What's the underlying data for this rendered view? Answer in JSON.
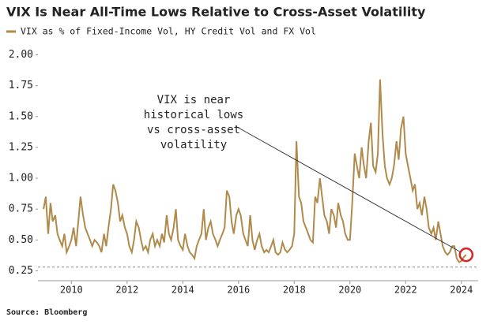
{
  "chart_data": {
    "type": "line",
    "title": "VIX Is Near All-Time Lows Relative to Cross-Asset Volatility",
    "source": "Source: Bloomberg",
    "annotation": [
      "VIX is near",
      "historical lows",
      "vs cross-asset",
      "volatility"
    ],
    "reference_line": 0.28,
    "xlim": [
      2008.8,
      2024.6
    ],
    "xticks": [
      2010,
      2012,
      2014,
      2016,
      2018,
      2020,
      2022,
      2024
    ],
    "ylim": [
      0.17,
      2.08
    ],
    "yticks": [
      {
        "value": 0.25,
        "label": "0.25"
      },
      {
        "value": 0.5,
        "label": "0.50"
      },
      {
        "value": 0.75,
        "label": "0.75"
      },
      {
        "value": 1,
        "label": "1.00"
      },
      {
        "value": 1.25,
        "label": "1.25"
      },
      {
        "value": 1.5,
        "label": "1.50"
      },
      {
        "value": 1.75,
        "label": "1.75"
      },
      {
        "value": 2,
        "label": "2.00"
      }
    ],
    "x": [
      2009,
      2009.08,
      2009.17,
      2009.25,
      2009.33,
      2009.42,
      2009.5,
      2009.58,
      2009.67,
      2009.75,
      2009.83,
      2009.92,
      2010,
      2010.08,
      2010.17,
      2010.25,
      2010.33,
      2010.42,
      2010.5,
      2010.58,
      2010.67,
      2010.75,
      2010.83,
      2010.92,
      2011,
      2011.08,
      2011.17,
      2011.25,
      2011.33,
      2011.42,
      2011.5,
      2011.58,
      2011.67,
      2011.75,
      2011.83,
      2011.92,
      2012,
      2012.08,
      2012.17,
      2012.25,
      2012.33,
      2012.42,
      2012.5,
      2012.58,
      2012.67,
      2012.75,
      2012.83,
      2012.92,
      2013,
      2013.08,
      2013.17,
      2013.25,
      2013.33,
      2013.42,
      2013.5,
      2013.58,
      2013.67,
      2013.75,
      2013.83,
      2013.92,
      2014,
      2014.08,
      2014.17,
      2014.25,
      2014.33,
      2014.42,
      2014.5,
      2014.58,
      2014.67,
      2014.75,
      2014.83,
      2014.92,
      2015,
      2015.08,
      2015.17,
      2015.25,
      2015.33,
      2015.42,
      2015.5,
      2015.58,
      2015.67,
      2015.75,
      2015.83,
      2015.92,
      2016,
      2016.08,
      2016.17,
      2016.25,
      2016.33,
      2016.42,
      2016.5,
      2016.58,
      2016.67,
      2016.75,
      2016.83,
      2016.92,
      2017,
      2017.08,
      2017.17,
      2017.25,
      2017.33,
      2017.42,
      2017.5,
      2017.58,
      2017.67,
      2017.75,
      2017.83,
      2017.92,
      2018,
      2018.08,
      2018.17,
      2018.25,
      2018.33,
      2018.42,
      2018.5,
      2018.58,
      2018.67,
      2018.75,
      2018.83,
      2018.92,
      2019,
      2019.08,
      2019.17,
      2019.25,
      2019.33,
      2019.42,
      2019.5,
      2019.58,
      2019.67,
      2019.75,
      2019.83,
      2019.92,
      2020,
      2020.08,
      2020.17,
      2020.25,
      2020.33,
      2020.42,
      2020.5,
      2020.58,
      2020.67,
      2020.75,
      2020.83,
      2020.92,
      2021,
      2021.08,
      2021.17,
      2021.25,
      2021.33,
      2021.42,
      2021.5,
      2021.58,
      2021.67,
      2021.75,
      2021.83,
      2021.92,
      2022,
      2022.08,
      2022.17,
      2022.25,
      2022.33,
      2022.42,
      2022.5,
      2022.58,
      2022.67,
      2022.75,
      2022.83,
      2022.92,
      2023,
      2023.08,
      2023.17,
      2023.25,
      2023.33,
      2023.42,
      2023.5,
      2023.58,
      2023.67,
      2023.75,
      2023.83,
      2023.92,
      2024,
      2024.08,
      2024.17
    ],
    "series": [
      {
        "name": "VIX as % of Fixed-Income Vol, HY Credit Vol and FX Vol",
        "color": "#b08a4a",
        "values": [
          0.75,
          0.85,
          0.55,
          0.8,
          0.65,
          0.7,
          0.55,
          0.5,
          0.45,
          0.55,
          0.4,
          0.45,
          0.5,
          0.6,
          0.45,
          0.65,
          0.85,
          0.7,
          0.6,
          0.55,
          0.5,
          0.45,
          0.5,
          0.48,
          0.45,
          0.4,
          0.55,
          0.45,
          0.6,
          0.75,
          0.95,
          0.9,
          0.8,
          0.65,
          0.7,
          0.6,
          0.55,
          0.45,
          0.4,
          0.5,
          0.65,
          0.6,
          0.5,
          0.42,
          0.45,
          0.4,
          0.5,
          0.55,
          0.45,
          0.5,
          0.45,
          0.55,
          0.48,
          0.7,
          0.55,
          0.5,
          0.6,
          0.75,
          0.5,
          0.45,
          0.42,
          0.55,
          0.45,
          0.4,
          0.38,
          0.35,
          0.45,
          0.5,
          0.55,
          0.75,
          0.5,
          0.6,
          0.65,
          0.55,
          0.5,
          0.45,
          0.5,
          0.55,
          0.6,
          0.9,
          0.85,
          0.65,
          0.55,
          0.7,
          0.75,
          0.7,
          0.55,
          0.5,
          0.45,
          0.7,
          0.5,
          0.42,
          0.5,
          0.55,
          0.45,
          0.4,
          0.42,
          0.4,
          0.45,
          0.5,
          0.4,
          0.38,
          0.4,
          0.48,
          0.42,
          0.4,
          0.42,
          0.45,
          0.55,
          1.3,
          0.85,
          0.8,
          0.65,
          0.6,
          0.55,
          0.5,
          0.48,
          0.85,
          0.8,
          1.0,
          0.85,
          0.7,
          0.65,
          0.55,
          0.75,
          0.7,
          0.6,
          0.8,
          0.7,
          0.65,
          0.55,
          0.5,
          0.5,
          0.8,
          1.2,
          1.1,
          1.0,
          1.25,
          1.1,
          1.0,
          1.3,
          1.45,
          1.1,
          1.05,
          1.2,
          1.8,
          1.35,
          1.1,
          1.0,
          0.95,
          1.0,
          1.1,
          1.3,
          1.15,
          1.4,
          1.5,
          1.2,
          1.1,
          1.0,
          0.9,
          0.95,
          0.75,
          0.8,
          0.7,
          0.85,
          0.75,
          0.6,
          0.55,
          0.6,
          0.5,
          0.65,
          0.55,
          0.45,
          0.4,
          0.38,
          0.4,
          0.45,
          0.45,
          0.35,
          0.32,
          0.33,
          0.36,
          0.38
        ]
      }
    ]
  }
}
